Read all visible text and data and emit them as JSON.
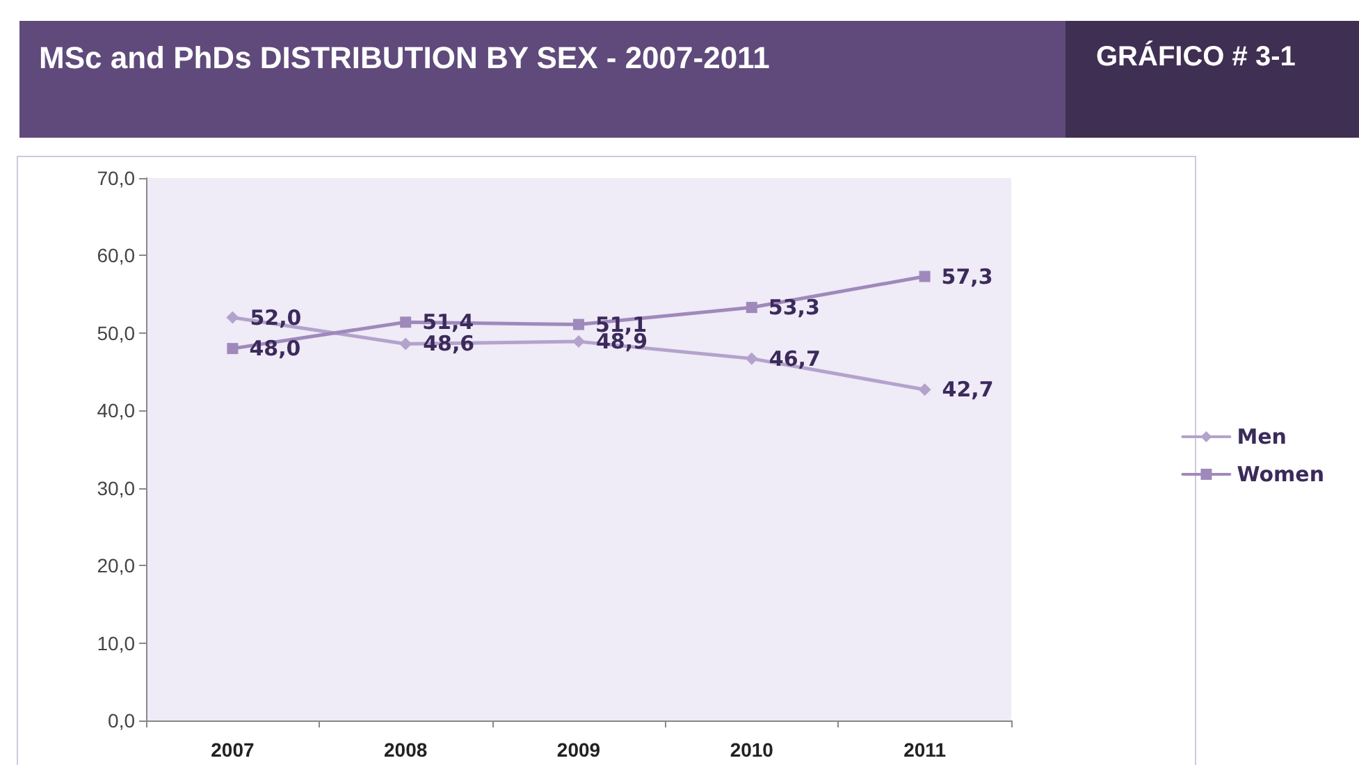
{
  "chart_data": {
    "type": "line",
    "title": "MSc and PhDs DISTRIBUTION BY SEX - 2007-2011",
    "subtitle": "GRÁFICO # 3-1",
    "categories": [
      "2007",
      "2008",
      "2009",
      "2010",
      "2011"
    ],
    "series": [
      {
        "name": "Men",
        "color": "#b3a3cc",
        "marker": "diamond",
        "values": [
          52.0,
          48.6,
          48.9,
          46.7,
          42.7
        ],
        "value_labels": [
          "52,0",
          "48,6",
          "48,9",
          "46,7",
          "42,7"
        ]
      },
      {
        "name": "Women",
        "color": "#9f89bb",
        "marker": "square",
        "values": [
          48.0,
          51.4,
          51.1,
          53.3,
          57.3
        ],
        "value_labels": [
          "48,0",
          "51,4",
          "51,1",
          "53,3",
          "57,3"
        ]
      }
    ],
    "ylim": [
      0,
      70
    ],
    "yticks": [
      {
        "value": 0,
        "label": "0,0"
      },
      {
        "value": 10,
        "label": "10,0"
      },
      {
        "value": 20,
        "label": "20,0"
      },
      {
        "value": 30,
        "label": "30,0"
      },
      {
        "value": 40,
        "label": "40,0"
      },
      {
        "value": 50,
        "label": "50,0"
      },
      {
        "value": 60,
        "label": "60,0"
      },
      {
        "value": 70,
        "label": "70,0"
      }
    ],
    "grid": false,
    "legend": "right",
    "line_style": "solid"
  }
}
